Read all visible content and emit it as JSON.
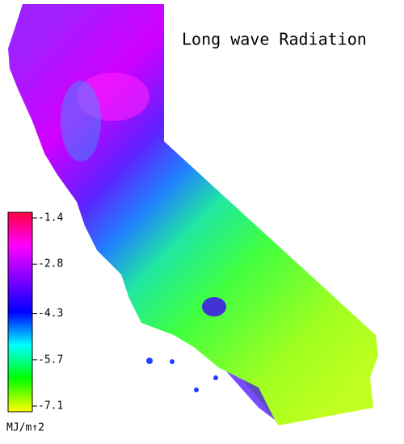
{
  "map": {
    "title": "Long wave Radiation",
    "colorbar": {
      "lim": [
        -7.1,
        -1.4
      ],
      "ticks": [
        -1.4,
        -2.8,
        -4.3,
        -5.7,
        -7.1
      ],
      "unit": "MJ/m↑2",
      "colors": [
        "#ff0040",
        "#ff00ff",
        "#8000ff",
        "#0000ff",
        "#00ffff",
        "#00ff00",
        "#ffff00"
      ]
    }
  }
}
